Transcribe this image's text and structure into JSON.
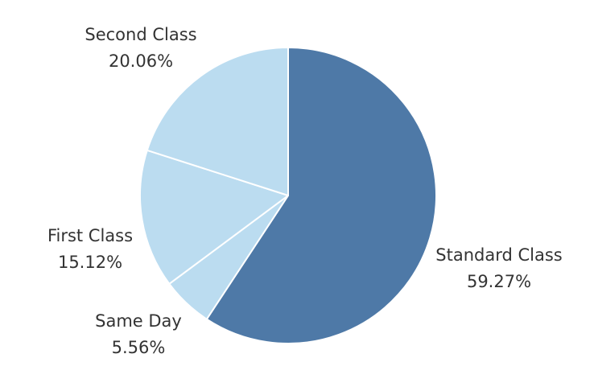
{
  "chart_data": {
    "type": "pie",
    "title": "",
    "categories": [
      "Standard Class",
      "Same Day",
      "First Class",
      "Second Class"
    ],
    "values": [
      59.27,
      5.56,
      15.12,
      20.06
    ],
    "value_labels": [
      "59.27%",
      "5.56%",
      "15.12%",
      "20.06%"
    ],
    "colors": [
      "#4e79a7",
      "#bbdcf0",
      "#bbdcf0",
      "#bbdcf0"
    ],
    "start_direction": "top",
    "order": "clockwise",
    "legend": "none"
  }
}
